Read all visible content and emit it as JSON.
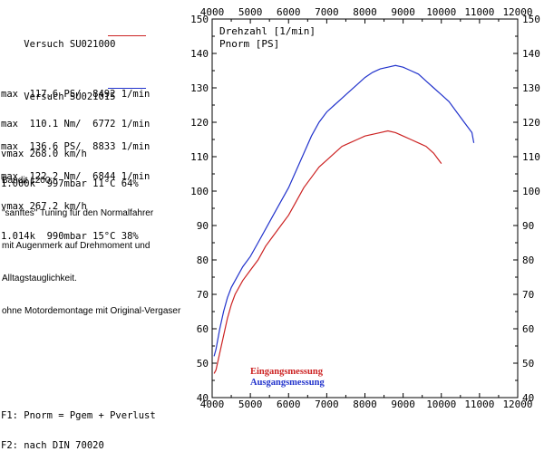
{
  "runs": [
    {
      "title": "Versuch SU021000",
      "l1": "max  117.6 PS/  8492 1/min",
      "l2": "max  110.1 Nm/  6772 1/min",
      "l3": "vmax 268.0 km/h",
      "l4": "1.000k  997mbar 11°C 64%"
    },
    {
      "title": "Versuch SU021015",
      "l1": "max  136.6 PS/  8833 1/min",
      "l2": "max  122.2 Nm/  6844 1/min",
      "l3": "vmax 267.2 km/h",
      "l4": "1.014k  990mbar 15°C 38%"
    }
  ],
  "note": {
    "l1": "Bandit 1200:",
    "l2": "\"sanftes\" Tuning für den Normalfahrer",
    "l3": "mit Augenmerk auf Drehmoment und",
    "l4": "Alltagstauglichkeit.",
    "l5": "ohne Motordemontage mit Original-Vergaser"
  },
  "footnote": {
    "l1": "F1: Pnorm = Pgem + Pverlust",
    "l2": "F2: nach DIN 70020"
  },
  "colors": {
    "run1": "#cc2222",
    "run2": "#2233cc"
  },
  "chart_data": {
    "type": "line",
    "xlabel": "Drehzahl [1/min]",
    "ylabel": "Pnorm [PS]",
    "xlim": [
      4000,
      12000
    ],
    "ylim": [
      40,
      150
    ],
    "x_ticks": [
      4000,
      5000,
      6000,
      7000,
      8000,
      9000,
      10000,
      11000,
      12000
    ],
    "y_ticks": [
      40,
      50,
      60,
      70,
      80,
      90,
      100,
      110,
      120,
      130,
      140,
      150
    ],
    "grid": false,
    "legend_position": "bottom-center",
    "series": [
      {
        "name": "Eingangsmessung",
        "color": "#cc2222",
        "x": [
          4050,
          4100,
          4200,
          4300,
          4400,
          4500,
          4600,
          4800,
          5000,
          5200,
          5400,
          5600,
          5800,
          6000,
          6200,
          6400,
          6600,
          6800,
          7000,
          7200,
          7400,
          7600,
          7800,
          8000,
          8200,
          8400,
          8600,
          8800,
          9000,
          9200,
          9400,
          9600,
          9800,
          10000
        ],
        "y": [
          47,
          48,
          53,
          58,
          63,
          67,
          70,
          74,
          77,
          80,
          84,
          87,
          90,
          93,
          97,
          101,
          104,
          107,
          109,
          111,
          113,
          114,
          115,
          116,
          116.5,
          117,
          117.5,
          117,
          116,
          115,
          114,
          113,
          111,
          108
        ]
      },
      {
        "name": "Ausgangsmessung",
        "color": "#2233cc",
        "x": [
          4050,
          4100,
          4200,
          4300,
          4400,
          4500,
          4600,
          4800,
          5000,
          5200,
          5400,
          5600,
          5800,
          6000,
          6200,
          6400,
          6600,
          6800,
          7000,
          7200,
          7400,
          7600,
          7800,
          8000,
          8200,
          8400,
          8600,
          8800,
          9000,
          9200,
          9400,
          9600,
          9800,
          10000,
          10200,
          10400,
          10600,
          10800,
          10850
        ],
        "y": [
          52,
          54,
          60,
          65,
          69,
          72,
          74,
          78,
          81,
          85,
          89,
          93,
          97,
          101,
          106,
          111,
          116,
          120,
          123,
          125,
          127,
          129,
          131,
          133,
          134.5,
          135.5,
          136,
          136.5,
          136,
          135,
          134,
          132,
          130,
          128,
          126,
          123,
          120,
          117,
          114
        ]
      }
    ]
  }
}
